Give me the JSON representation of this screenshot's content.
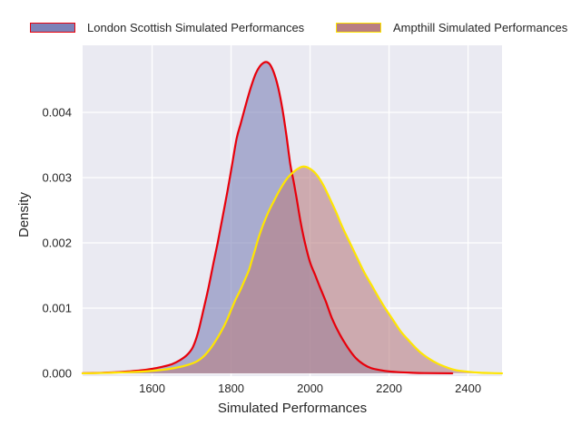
{
  "figure": {
    "background": "#ffffff",
    "plot_background": "#eaeaf2",
    "grid_color": "#ffffff",
    "text_color": "#262626"
  },
  "legend": [
    {
      "label": "London Scottish Simulated Performances",
      "swatch_fill": "#7d82b8",
      "swatch_edge": "#e8000b"
    },
    {
      "label": "Ampthill Simulated Performances",
      "swatch_fill": "#b97e82",
      "swatch_edge": "#ffe600"
    }
  ],
  "chart_data": {
    "type": "area",
    "subtype": "kde-density",
    "title": "",
    "xlabel": "Simulated Performances",
    "ylabel": "Density",
    "xlim": [
      1424,
      2486
    ],
    "ylim": [
      0,
      0.005
    ],
    "xticks": [
      1600,
      1800,
      2000,
      2200,
      2400
    ],
    "yticks": [
      0,
      0.001,
      0.002,
      0.003,
      0.004
    ],
    "ytick_labels": [
      "0.000",
      "0.001",
      "0.002",
      "0.003",
      "0.004"
    ],
    "grid": true,
    "legend_position": "top",
    "series": [
      {
        "name": "London Scottish Simulated Performances",
        "line_color": "#e8000b",
        "fill_color": "rgba(125,130,184,0.6)",
        "peak": {
          "x": 1891,
          "density": 0.00477
        },
        "x": [
          1424,
          1450,
          1480,
          1510,
          1540,
          1570,
          1600,
          1625,
          1650,
          1670,
          1688,
          1703,
          1716,
          1731,
          1743,
          1755,
          1766,
          1778,
          1791,
          1802,
          1814,
          1824,
          1832,
          1842,
          1852,
          1862,
          1872,
          1882,
          1891,
          1900,
          1910,
          1920,
          1930,
          1940,
          1950,
          1958,
          1966,
          1976,
          1987,
          2000,
          2012,
          2025,
          2040,
          2055,
          2075,
          2095,
          2115,
          2135,
          2155,
          2178,
          2200,
          2225,
          2255,
          2290,
          2360
        ],
        "density": [
          2e-06,
          5e-06,
          1e-05,
          1.8e-05,
          3e-05,
          4.5e-05,
          7e-05,
          0.0001,
          0.00014,
          0.0002,
          0.00028,
          0.0004,
          0.00062,
          0.001,
          0.00132,
          0.00168,
          0.002,
          0.00238,
          0.0028,
          0.00318,
          0.0036,
          0.00382,
          0.004,
          0.00422,
          0.00442,
          0.00459,
          0.0047,
          0.00476,
          0.00477,
          0.00472,
          0.00458,
          0.00436,
          0.00405,
          0.00365,
          0.0032,
          0.00295,
          0.00268,
          0.00232,
          0.002,
          0.0017,
          0.00152,
          0.00132,
          0.0011,
          0.00085,
          0.0006,
          0.0004,
          0.00024,
          0.00014,
          8e-05,
          5e-05,
          3e-05,
          1.8e-05,
          1e-05,
          4e-06,
          1e-06
        ]
      },
      {
        "name": "Ampthill Simulated Performances",
        "line_color": "#ffe600",
        "fill_color": "rgba(185,126,130,0.6)",
        "peak": {
          "x": 1983,
          "density": 0.00317
        },
        "x": [
          1424,
          1460,
          1500,
          1540,
          1580,
          1620,
          1655,
          1685,
          1712,
          1732,
          1750,
          1766,
          1780,
          1791,
          1802,
          1812,
          1822,
          1833,
          1845,
          1852,
          1860,
          1868,
          1880,
          1895,
          1910,
          1925,
          1941,
          1955,
          1970,
          1983,
          1996,
          2010,
          2022,
          2034,
          2050,
          2066,
          2082,
          2101,
          2120,
          2137,
          2155,
          2172,
          2190,
          2210,
          2230,
          2252,
          2276,
          2300,
          2323,
          2347,
          2369,
          2400,
          2430,
          2460,
          2486
        ],
        "density": [
          1e-06,
          4e-06,
          1e-05,
          1.8e-05,
          3e-05,
          5e-05,
          8e-05,
          0.00012,
          0.00018,
          0.00027,
          0.0004,
          0.00055,
          0.0007,
          0.00084,
          0.001,
          0.00114,
          0.00126,
          0.00141,
          0.00158,
          0.00172,
          0.00188,
          0.00205,
          0.00226,
          0.00248,
          0.00266,
          0.00283,
          0.00298,
          0.00307,
          0.00314,
          0.00317,
          0.00315,
          0.00309,
          0.003,
          0.00288,
          0.00268,
          0.00247,
          0.00224,
          0.002,
          0.00176,
          0.00155,
          0.00136,
          0.00118,
          0.001,
          0.00082,
          0.00064,
          0.00049,
          0.00034,
          0.00023,
          0.00015,
          9e-05,
          5e-05,
          2.5e-05,
          1e-05,
          4e-06,
          1e-06
        ]
      }
    ]
  }
}
